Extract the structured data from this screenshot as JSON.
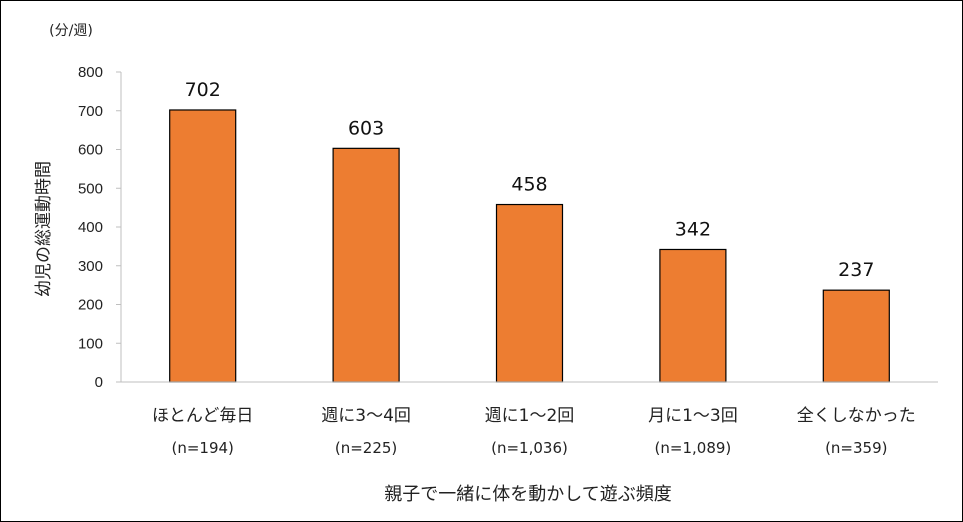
{
  "chart_data": {
    "type": "bar",
    "unit_label": "(分/週)",
    "ylabel": "幼児の総運動時間",
    "xlabel": "親子で一緒に体を動かして遊ぶ頻度",
    "categories": [
      "ほとんど毎日",
      "週に3～4回",
      "週に1～2回",
      "月に1～3回",
      "全くしなかった"
    ],
    "sample_sizes": [
      "(n=194)",
      "(n=225)",
      "(n=1,036)",
      "(n=1,089)",
      "(n=359)"
    ],
    "values": [
      702,
      603,
      458,
      342,
      237
    ],
    "ylim": [
      0,
      800
    ],
    "yticks": [
      0,
      100,
      200,
      300,
      400,
      500,
      600,
      700,
      800
    ],
    "bar_color": "#ED7D31",
    "grid": false,
    "legend": "none"
  }
}
